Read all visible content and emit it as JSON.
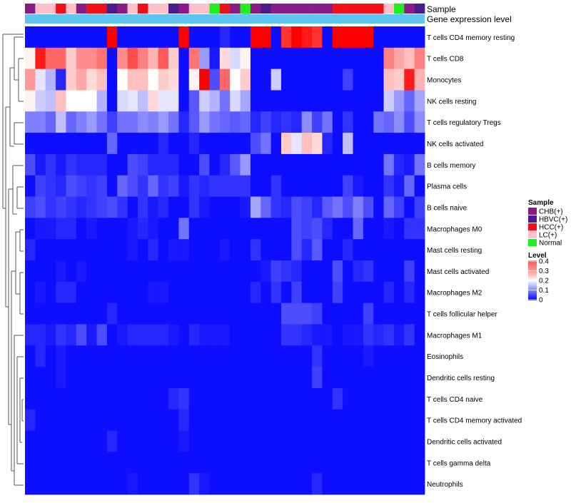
{
  "chart_data": {
    "type": "heatmap",
    "title": "",
    "annotation_tracks": [
      "Sample",
      "Gene expression level"
    ],
    "sample_groups": {
      "colors": {
        "CHB(+)": "#8B1A89",
        "HBVC(+)": "#4B1A8F",
        "HCC(+)": "#F20F18",
        "LC(+)": "#FFC0CB",
        "Normal": "#1EF01E"
      },
      "columns": [
        "CHB(+)",
        "LC(+)",
        "LC(+)",
        "HCC(+)",
        "LC(+)",
        "CHB(+)",
        "HCC(+)",
        "HCC(+)",
        "HBVC(+)",
        "CHB(+)",
        "LC(+)",
        "HCC(+)",
        "LC(+)",
        "LC(+)",
        "HBVC(+)",
        "CHB(+)",
        "LC(+)",
        "LC(+)",
        "Normal",
        "HCC(+)",
        "CHB(+)",
        "Normal",
        "CHB(+)",
        "HBVC(+)",
        "CHB(+)",
        "CHB(+)",
        "CHB(+)",
        "CHB(+)",
        "CHB(+)",
        "CHB(+)",
        "HCC(+)",
        "HCC(+)",
        "HCC(+)",
        "HCC(+)",
        "HCC(+)",
        "LC(+)",
        "Normal",
        "CHB(+)",
        "HBVC(+)"
      ]
    },
    "expression_track_color": "#5EC4F0",
    "rows": [
      "T cells CD4 memory resting",
      "T cells CD8",
      "Monocytes",
      "NK cells resting",
      "T cells regulatory  Tregs",
      "NK cells activated",
      "B cells memory",
      "Plasma cells",
      "B cells naive",
      "Macrophages M0",
      "Mast cells resting",
      "Mast cells activated",
      "Macrophages M2",
      "T cells follicular helper",
      "Macrophages M1",
      "Eosinophils",
      "Dendritic cells resting",
      "T cells CD4 naive",
      "T cells CD4 memory activated",
      "Dendritic cells activated",
      "T cells gamma delta",
      "Neutrophils"
    ],
    "values": [
      [
        0.01,
        0.01,
        0.01,
        0.01,
        0.01,
        0.01,
        0.01,
        0.01,
        0.4,
        0.01,
        0.01,
        0.01,
        0.01,
        0.01,
        0.01,
        0.4,
        0.01,
        0.01,
        0.01,
        0.03,
        0.01,
        0.01,
        0.4,
        0.4,
        0.01,
        0.36,
        0.4,
        0.38,
        0.36,
        0.01,
        0.4,
        0.4,
        0.4,
        0.4,
        0.01,
        0.01,
        0.01,
        0.01,
        0.01
      ],
      [
        0.21,
        0.38,
        0.32,
        0.32,
        0.24,
        0.29,
        0.29,
        0.31,
        0.01,
        0.29,
        0.34,
        0.3,
        0.26,
        0.33,
        0.24,
        0.01,
        0.31,
        0.12,
        0.02,
        0.23,
        0.17,
        0.21,
        0.01,
        0.01,
        0.01,
        0.01,
        0.01,
        0.01,
        0.01,
        0.01,
        0.01,
        0.01,
        0.01,
        0.01,
        0.01,
        0.3,
        0.27,
        0.25,
        0.3
      ],
      [
        0.28,
        0.18,
        0.14,
        0.03,
        0.24,
        0.27,
        0.23,
        0.25,
        0.01,
        0.2,
        0.25,
        0.25,
        0.2,
        0.24,
        0.23,
        0.01,
        0.21,
        0.4,
        0.06,
        0.32,
        0.2,
        0.24,
        0.01,
        0.01,
        0.16,
        0.01,
        0.01,
        0.01,
        0.01,
        0.01,
        0.01,
        0.05,
        0.01,
        0.01,
        0.01,
        0.25,
        0.24,
        0.38,
        0.26
      ],
      [
        0.21,
        0.16,
        0.15,
        0.25,
        0.2,
        0.2,
        0.2,
        0.14,
        0.01,
        0.17,
        0.18,
        0.15,
        0.23,
        0.18,
        0.18,
        0.01,
        0.07,
        0.16,
        0.14,
        0.09,
        0.17,
        0.13,
        0.01,
        0.01,
        0.01,
        0.01,
        0.01,
        0.01,
        0.01,
        0.01,
        0.01,
        0.01,
        0.01,
        0.01,
        0.01,
        0.16,
        0.12,
        0.08,
        0.13
      ],
      [
        0.1,
        0.1,
        0.08,
        0.15,
        0.08,
        0.1,
        0.12,
        0.09,
        0.05,
        0.09,
        0.09,
        0.11,
        0.1,
        0.12,
        0.09,
        0.03,
        0.07,
        0.12,
        0.09,
        0.08,
        0.07,
        0.08,
        0.03,
        0.05,
        0.03,
        0.04,
        0.03,
        0.11,
        0.05,
        0.09,
        0.01,
        0.04,
        0.01,
        0.01,
        0.09,
        0.08,
        0.11,
        0.06,
        0.11
      ],
      [
        0.01,
        0.01,
        0.01,
        0.01,
        0.01,
        0.01,
        0.01,
        0.01,
        0.08,
        0.01,
        0.01,
        0.01,
        0.01,
        0.03,
        0.01,
        0.01,
        0.03,
        0.01,
        0.01,
        0.01,
        0.01,
        0.01,
        0.06,
        0.09,
        0.01,
        0.24,
        0.18,
        0.25,
        0.23,
        0.03,
        0.01,
        0.15,
        0.01,
        0.01,
        0.01,
        0.01,
        0.01,
        0.01,
        0.01
      ],
      [
        0.06,
        0.02,
        0.04,
        0.02,
        0.04,
        0.03,
        0.03,
        0.03,
        0.01,
        0.01,
        0.06,
        0.05,
        0.03,
        0.03,
        0.03,
        0.01,
        0.01,
        0.06,
        0.01,
        0.03,
        0.07,
        0.12,
        0.01,
        0.01,
        0.01,
        0.01,
        0.01,
        0.01,
        0.01,
        0.01,
        0.01,
        0.01,
        0.01,
        0.01,
        0.01,
        0.09,
        0.03,
        0.02,
        0.09
      ],
      [
        0.01,
        0.05,
        0.04,
        0.03,
        0.06,
        0.05,
        0.04,
        0.05,
        0.01,
        0.08,
        0.06,
        0.04,
        0.08,
        0.04,
        0.05,
        0.02,
        0.04,
        0.03,
        0.04,
        0.04,
        0.04,
        0.04,
        0.01,
        0.01,
        0.04,
        0.01,
        0.01,
        0.01,
        0.01,
        0.01,
        0.01,
        0.05,
        0.02,
        0.01,
        0.01,
        0.04,
        0.02,
        0.08,
        0.01
      ],
      [
        0.05,
        0.06,
        0.04,
        0.05,
        0.04,
        0.03,
        0.04,
        0.05,
        0.06,
        0.04,
        0.01,
        0.04,
        0.02,
        0.03,
        0.01,
        0.01,
        0.04,
        0.02,
        0.01,
        0.01,
        0.01,
        0.02,
        0.13,
        0.08,
        0.04,
        0.03,
        0.06,
        0.05,
        0.03,
        0.07,
        0.09,
        0.06,
        0.1,
        0.06,
        0.01,
        0.08,
        0.05,
        0.01,
        0.05
      ],
      [
        0.01,
        0.02,
        0.02,
        0.03,
        0.03,
        0.01,
        0.02,
        0.01,
        0.01,
        0.01,
        0.02,
        0.03,
        0.02,
        0.01,
        0.01,
        0.09,
        0.01,
        0.01,
        0.01,
        0.01,
        0.01,
        0.01,
        0.01,
        0.01,
        0.01,
        0.01,
        0.06,
        0.05,
        0.06,
        0.03,
        0.01,
        0.01,
        0.08,
        0.01,
        0.01,
        0.02,
        0.01,
        0.04,
        0.04
      ],
      [
        0.03,
        0.01,
        0.01,
        0.01,
        0.01,
        0.01,
        0.01,
        0.01,
        0.01,
        0.01,
        0.02,
        0.01,
        0.03,
        0.01,
        0.02,
        0.02,
        0.01,
        0.01,
        0.01,
        0.02,
        0.01,
        0.01,
        0.04,
        0.01,
        0.01,
        0.01,
        0.06,
        0.03,
        0.07,
        0.01,
        0.01,
        0.03,
        0.01,
        0.01,
        0.01,
        0.01,
        0.01,
        0.01,
        0.01
      ],
      [
        0.01,
        0.01,
        0.01,
        0.02,
        0.01,
        0.02,
        0.01,
        0.01,
        0.01,
        0.01,
        0.01,
        0.01,
        0.01,
        0.01,
        0.01,
        0.01,
        0.01,
        0.01,
        0.01,
        0.01,
        0.01,
        0.01,
        0.01,
        0.02,
        0.05,
        0.04,
        0.03,
        0.01,
        0.01,
        0.01,
        0.06,
        0.01,
        0.03,
        0.04,
        0.01,
        0.01,
        0.01,
        0.05,
        0.01
      ],
      [
        0.01,
        0.02,
        0.01,
        0.03,
        0.03,
        0.01,
        0.01,
        0.01,
        0.01,
        0.01,
        0.01,
        0.01,
        0.02,
        0.02,
        0.01,
        0.01,
        0.01,
        0.01,
        0.01,
        0.01,
        0.01,
        0.01,
        0.03,
        0.01,
        0.04,
        0.01,
        0.05,
        0.01,
        0.01,
        0.01,
        0.05,
        0.01,
        0.01,
        0.01,
        0.01,
        0.03,
        0.01,
        0.03,
        0.01
      ],
      [
        0.01,
        0.01,
        0.01,
        0.01,
        0.01,
        0.01,
        0.01,
        0.01,
        0.03,
        0.01,
        0.01,
        0.01,
        0.01,
        0.01,
        0.01,
        0.01,
        0.01,
        0.01,
        0.01,
        0.01,
        0.01,
        0.01,
        0.01,
        0.01,
        0.01,
        0.06,
        0.06,
        0.06,
        0.05,
        0.01,
        0.01,
        0.01,
        0.01,
        0.05,
        0.01,
        0.01,
        0.01,
        0.01,
        0.01
      ],
      [
        0.03,
        0.03,
        0.02,
        0.04,
        0.03,
        0.06,
        0.02,
        0.06,
        0.01,
        0.02,
        0.03,
        0.03,
        0.03,
        0.03,
        0.02,
        0.01,
        0.03,
        0.02,
        0.02,
        0.02,
        0.01,
        0.01,
        0.01,
        0.01,
        0.01,
        0.04,
        0.04,
        0.03,
        0.02,
        0.02,
        0.01,
        0.02,
        0.02,
        0.04,
        0.03,
        0.04,
        0.02,
        0.04,
        0.01
      ],
      [
        0.01,
        0.03,
        0.01,
        0.02,
        0.01,
        0.01,
        0.01,
        0.01,
        0.01,
        0.01,
        0.01,
        0.01,
        0.01,
        0.01,
        0.01,
        0.01,
        0.01,
        0.01,
        0.01,
        0.01,
        0.01,
        0.01,
        0.01,
        0.01,
        0.01,
        0.01,
        0.01,
        0.01,
        0.04,
        0.01,
        0.01,
        0.01,
        0.01,
        0.02,
        0.01,
        0.01,
        0.01,
        0.01,
        0.01
      ],
      [
        0.01,
        0.01,
        0.01,
        0.02,
        0.01,
        0.01,
        0.01,
        0.01,
        0.01,
        0.01,
        0.01,
        0.01,
        0.01,
        0.01,
        0.01,
        0.01,
        0.01,
        0.01,
        0.01,
        0.01,
        0.01,
        0.01,
        0.01,
        0.01,
        0.01,
        0.01,
        0.01,
        0.01,
        0.05,
        0.01,
        0.01,
        0.01,
        0.01,
        0.01,
        0.01,
        0.01,
        0.01,
        0.01,
        0.01
      ],
      [
        0.01,
        0.01,
        0.01,
        0.01,
        0.01,
        0.01,
        0.01,
        0.01,
        0.01,
        0.01,
        0.01,
        0.01,
        0.01,
        0.01,
        0.03,
        0.04,
        0.01,
        0.01,
        0.01,
        0.01,
        0.01,
        0.01,
        0.01,
        0.01,
        0.01,
        0.01,
        0.01,
        0.01,
        0.01,
        0.01,
        0.04,
        0.01,
        0.01,
        0.01,
        0.01,
        0.01,
        0.01,
        0.01,
        0.01
      ],
      [
        0.03,
        0.01,
        0.01,
        0.01,
        0.01,
        0.01,
        0.01,
        0.01,
        0.01,
        0.01,
        0.01,
        0.01,
        0.01,
        0.01,
        0.01,
        0.03,
        0.01,
        0.01,
        0.01,
        0.01,
        0.01,
        0.01,
        0.01,
        0.01,
        0.01,
        0.01,
        0.01,
        0.01,
        0.01,
        0.01,
        0.01,
        0.01,
        0.01,
        0.01,
        0.01,
        0.01,
        0.01,
        0.01,
        0.01
      ],
      [
        0.01,
        0.01,
        0.01,
        0.01,
        0.01,
        0.01,
        0.01,
        0.01,
        0.03,
        0.01,
        0.01,
        0.01,
        0.01,
        0.01,
        0.01,
        0.02,
        0.01,
        0.01,
        0.01,
        0.01,
        0.01,
        0.01,
        0.01,
        0.01,
        0.01,
        0.01,
        0.01,
        0.01,
        0.01,
        0.01,
        0.01,
        0.01,
        0.01,
        0.01,
        0.01,
        0.01,
        0.01,
        0.01,
        0.01
      ],
      [
        0.01,
        0.01,
        0.01,
        0.01,
        0.01,
        0.01,
        0.01,
        0.01,
        0.01,
        0.01,
        0.01,
        0.01,
        0.01,
        0.01,
        0.01,
        0.01,
        0.01,
        0.01,
        0.01,
        0.01,
        0.01,
        0.01,
        0.01,
        0.01,
        0.01,
        0.01,
        0.01,
        0.01,
        0.01,
        0.01,
        0.01,
        0.01,
        0.01,
        0.01,
        0.01,
        0.01,
        0.01,
        0.01,
        0.01
      ],
      [
        0.01,
        0.01,
        0.01,
        0.01,
        0.01,
        0.01,
        0.01,
        0.01,
        0.01,
        0.01,
        0.02,
        0.01,
        0.01,
        0.01,
        0.01,
        0.01,
        0.04,
        0.02,
        0.01,
        0.01,
        0.01,
        0.01,
        0.01,
        0.01,
        0.01,
        0.01,
        0.01,
        0.01,
        0.03,
        0.01,
        0.01,
        0.01,
        0.01,
        0.01,
        0.01,
        0.01,
        0.01,
        0.01,
        0.01
      ]
    ],
    "color_scale": {
      "min": 0,
      "max": 0.4,
      "stops": [
        "#0000FF",
        "#FFFFFF",
        "#FF0000"
      ]
    },
    "legends": {
      "sample": {
        "title": "Sample",
        "entries": [
          "CHB(+)",
          "HBVC(+)",
          "HCC(+)",
          "LC(+)",
          "Normal"
        ]
      },
      "level": {
        "title": "Level",
        "ticks": [
          "0.4",
          "0.3",
          "0.2",
          "0.1",
          "0"
        ]
      }
    }
  }
}
